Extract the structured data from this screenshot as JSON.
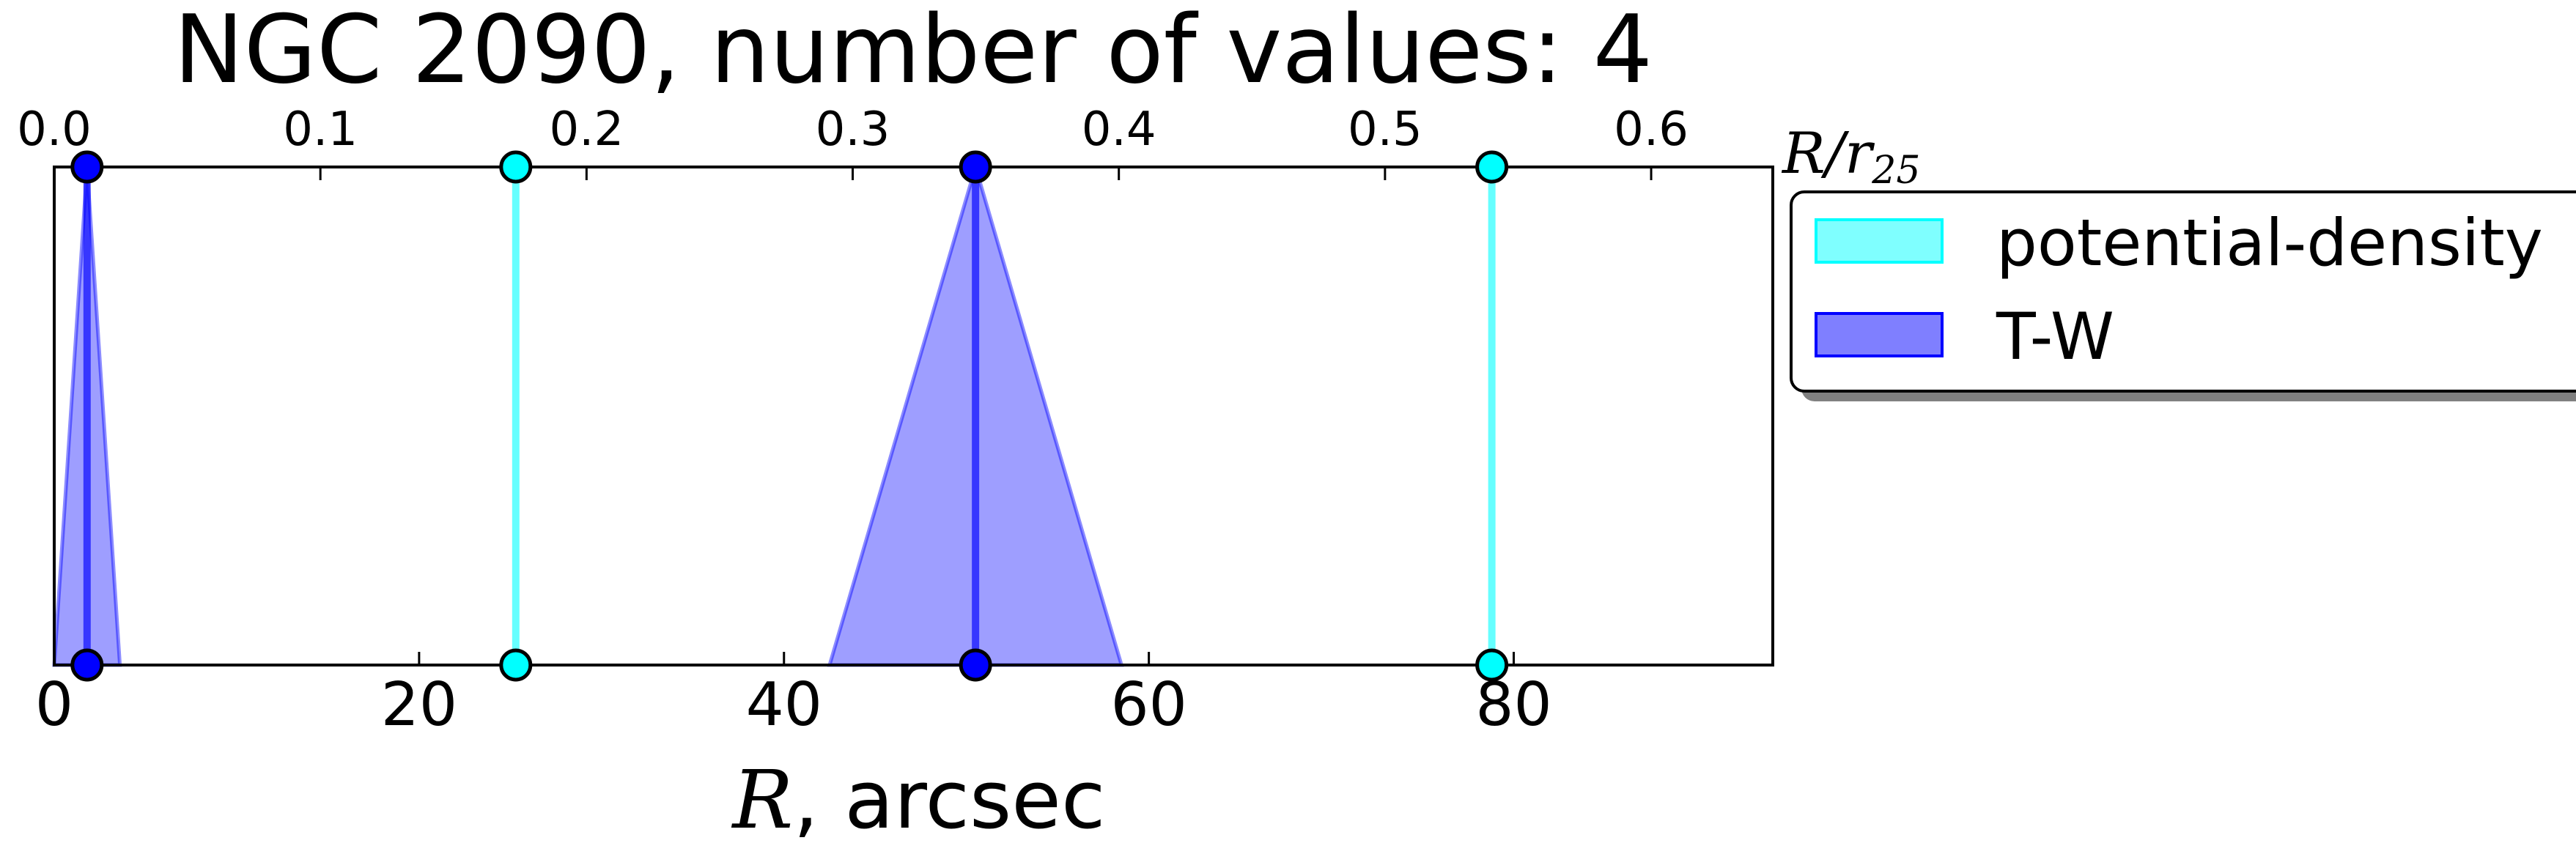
{
  "chart_data": {
    "type": "interval",
    "title": "NGC 2090, number of values: 4",
    "xlabel_var": "R",
    "xlabel_unit": ", arcsec",
    "top_xlabel_var": "R/r",
    "top_xlabel_sub": "25",
    "xlim": [
      0,
      94.2
    ],
    "top_xlim": [
      0,
      0.6457
    ],
    "x_ticks": [
      "0",
      "20",
      "40",
      "60",
      "80"
    ],
    "x_tick_values": [
      0,
      20,
      40,
      60,
      80
    ],
    "top_ticks": [
      "0.0",
      "0.1",
      "0.2",
      "0.3",
      "0.4",
      "0.5",
      "0.6"
    ],
    "top_tick_values": [
      0.0,
      0.1,
      0.2,
      0.3,
      0.4,
      0.5,
      0.6
    ],
    "legend_position": "right",
    "series": [
      {
        "name": "potential-density",
        "color": "#00ffff",
        "values": [
          25.3,
          78.8
        ],
        "half_widths": [
          0,
          0
        ]
      },
      {
        "name": "T-W",
        "color": "#0000ff",
        "values": [
          1.8,
          50.5
        ],
        "half_widths": [
          1.8,
          8.0
        ]
      }
    ]
  }
}
